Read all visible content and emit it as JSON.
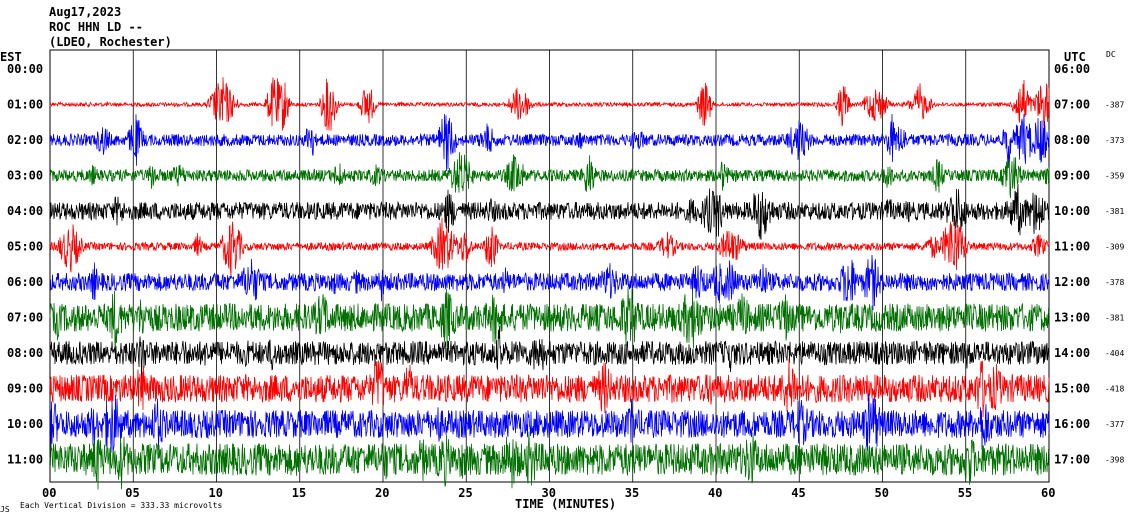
{
  "header": {
    "date": "Aug17,2023",
    "station": "ROC HHN LD --",
    "network": "(LDEO, Rochester)"
  },
  "left_axis_title": "EST",
  "right_axis_title": "UTC",
  "dc_title": "DC",
  "footer": {
    "vertical_division": "Each Vertical Division =  333.33 microvolts",
    "corner_mark": "JS"
  },
  "chart_data": {
    "type": "line",
    "xlabel": "TIME (MINUTES)",
    "x_ticks": [
      "00",
      "05",
      "10",
      "15",
      "20",
      "25",
      "30",
      "35",
      "40",
      "45",
      "50",
      "55",
      "60"
    ],
    "xlim": [
      0,
      60
    ],
    "est_labels": [
      "00:00",
      "01:00",
      "02:00",
      "03:00",
      "04:00",
      "05:00",
      "06:00",
      "07:00",
      "08:00",
      "09:00",
      "10:00",
      "11:00"
    ],
    "utc_labels": [
      "06:00",
      "07:00",
      "08:00",
      "09:00",
      "10:00",
      "11:00",
      "12:00",
      "13:00",
      "14:00",
      "15:00",
      "16:00",
      "17:00"
    ],
    "dc_values": [
      "",
      "-387",
      "-373",
      "-359",
      "-381",
      "-309",
      "-378",
      "-381",
      "-404",
      "-418",
      "-377",
      "-398"
    ],
    "trace_colors": [
      "#ff0000",
      "#0000ff",
      "#007000",
      "#000000"
    ],
    "grid": true,
    "series": [
      {
        "hour": 1,
        "color": "#ff0000",
        "noise": 2,
        "burst": 30
      },
      {
        "hour": 2,
        "color": "#0000ff",
        "noise": 6,
        "burst": 28
      },
      {
        "hour": 3,
        "color": "#007000",
        "noise": 6,
        "burst": 28
      },
      {
        "hour": 4,
        "color": "#000000",
        "noise": 9,
        "burst": 26
      },
      {
        "hour": 5,
        "color": "#ff0000",
        "noise": 4,
        "burst": 30
      },
      {
        "hour": 6,
        "color": "#0000ff",
        "noise": 9,
        "burst": 28
      },
      {
        "hour": 7,
        "color": "#007000",
        "noise": 14,
        "burst": 30
      },
      {
        "hour": 8,
        "color": "#000000",
        "noise": 12,
        "burst": 26
      },
      {
        "hour": 9,
        "color": "#ff0000",
        "noise": 14,
        "burst": 32
      },
      {
        "hour": 10,
        "color": "#0000ff",
        "noise": 14,
        "burst": 30
      },
      {
        "hour": 11,
        "color": "#007000",
        "noise": 16,
        "burst": 30
      }
    ]
  }
}
